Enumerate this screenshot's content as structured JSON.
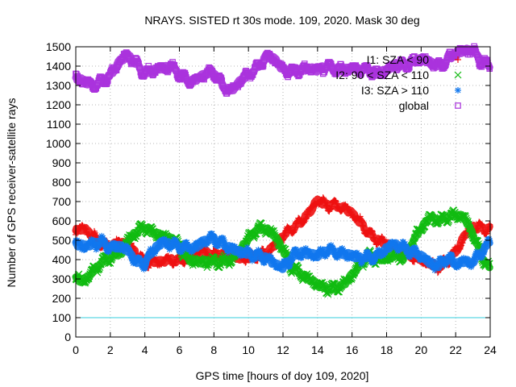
{
  "chart_data": {
    "type": "scatter",
    "title": "NRAYS. SISTED rt 30s mode. 109, 2020. Mask 30 deg",
    "xlabel": "GPS time [hours of doy 109, 2020]",
    "ylabel": "Number of GPS receiver-satellite rays",
    "xlim": [
      0,
      24
    ],
    "ylim": [
      0,
      1500
    ],
    "x_ticks": [
      "0",
      "2",
      "4",
      "6",
      "8",
      "10",
      "12",
      "14",
      "16",
      "18",
      "20",
      "22",
      "24"
    ],
    "y_ticks": [
      "0",
      "100",
      "200",
      "300",
      "400",
      "500",
      "600",
      "700",
      "800",
      "900",
      "1000",
      "1100",
      "1200",
      "1300",
      "1400",
      "1500"
    ],
    "grid": true,
    "legend_position": "top-right",
    "reference_line": {
      "y": 100,
      "color": "#33ccdd"
    },
    "series": [
      {
        "name": "I1: SZA < 90",
        "color": "#ee1111",
        "marker": "+",
        "x": [
          0,
          0.5,
          1,
          1.5,
          2,
          2.5,
          3,
          3.5,
          4,
          4.5,
          5,
          5.5,
          6,
          6.5,
          7,
          7.5,
          8,
          8.5,
          9,
          9.5,
          10,
          10.5,
          11,
          11.5,
          12,
          12.5,
          13,
          13.5,
          14,
          14.5,
          15,
          15.5,
          16,
          16.5,
          17,
          17.5,
          18,
          18.5,
          19,
          19.5,
          20,
          20.5,
          21,
          21.5,
          22,
          22.5,
          23,
          23.5,
          24
        ],
        "values": [
          550,
          560,
          520,
          480,
          470,
          490,
          480,
          430,
          380,
          390,
          390,
          400,
          390,
          420,
          440,
          440,
          420,
          430,
          420,
          410,
          410,
          420,
          430,
          470,
          520,
          560,
          590,
          640,
          710,
          680,
          680,
          670,
          640,
          590,
          530,
          500,
          480,
          460,
          430,
          420,
          400,
          380,
          360,
          390,
          440,
          520,
          570,
          560,
          560
        ]
      },
      {
        "name": "I2: 90 < SZA < 110",
        "color": "#11bb11",
        "marker": "x",
        "x": [
          0,
          0.5,
          1,
          1.5,
          2,
          2.5,
          3,
          3.5,
          4,
          4.5,
          5,
          5.5,
          6,
          6.5,
          7,
          7.5,
          8,
          8.5,
          9,
          9.5,
          10,
          10.5,
          11,
          11.5,
          12,
          12.5,
          13,
          13.5,
          14,
          14.5,
          15,
          15.5,
          16,
          16.5,
          17,
          17.5,
          18,
          18.5,
          19,
          19.5,
          20,
          20.5,
          21,
          21.5,
          22,
          22.5,
          23,
          23.5,
          24
        ],
        "values": [
          300,
          290,
          340,
          390,
          410,
          430,
          500,
          540,
          570,
          540,
          520,
          510,
          470,
          400,
          390,
          390,
          390,
          390,
          400,
          450,
          510,
          560,
          560,
          530,
          450,
          360,
          330,
          300,
          270,
          250,
          250,
          270,
          320,
          380,
          420,
          400,
          410,
          420,
          410,
          490,
          560,
          620,
          600,
          620,
          630,
          620,
          530,
          420,
          350
        ]
      },
      {
        "name": "I3: SZA > 110",
        "color": "#1177ee",
        "marker": "*",
        "x": [
          0,
          0.5,
          1,
          1.5,
          2,
          2.5,
          3,
          3.5,
          4,
          4.5,
          5,
          5.5,
          6,
          6.5,
          7,
          7.5,
          8,
          8.5,
          9,
          9.5,
          10,
          10.5,
          11,
          11.5,
          12,
          12.5,
          13,
          13.5,
          14,
          14.5,
          15,
          15.5,
          16,
          16.5,
          17,
          17.5,
          18,
          18.5,
          19,
          19.5,
          20,
          20.5,
          21,
          21.5,
          22,
          22.5,
          23,
          23.5,
          24
        ],
        "values": [
          480,
          470,
          480,
          490,
          460,
          470,
          450,
          390,
          380,
          450,
          490,
          480,
          470,
          460,
          470,
          500,
          510,
          480,
          460,
          440,
          430,
          420,
          410,
          380,
          360,
          410,
          440,
          430,
          420,
          450,
          440,
          430,
          420,
          410,
          410,
          420,
          460,
          480,
          460,
          440,
          420,
          380,
          370,
          410,
          380,
          390,
          390,
          440,
          490
        ]
      },
      {
        "name": "global",
        "color": "#aa33dd",
        "marker": "square",
        "x": [
          0,
          0.5,
          1,
          1.5,
          2,
          2.5,
          3,
          3.5,
          4,
          4.5,
          5,
          5.5,
          6,
          6.5,
          7,
          7.5,
          8,
          8.5,
          9,
          9.5,
          10,
          10.5,
          11,
          11.5,
          12,
          12.5,
          13,
          13.5,
          14,
          14.5,
          15,
          15.5,
          16,
          16.5,
          17,
          17.5,
          18,
          18.5,
          19,
          19.5,
          20,
          20.5,
          21,
          21.5,
          22,
          22.5,
          23,
          23.5,
          24
        ],
        "values": [
          1340,
          1320,
          1300,
          1320,
          1350,
          1420,
          1460,
          1410,
          1360,
          1380,
          1390,
          1400,
          1360,
          1320,
          1330,
          1360,
          1370,
          1300,
          1270,
          1320,
          1360,
          1390,
          1450,
          1440,
          1380,
          1370,
          1380,
          1390,
          1380,
          1400,
          1390,
          1380,
          1390,
          1380,
          1380,
          1360,
          1380,
          1410,
          1400,
          1420,
          1440,
          1420,
          1400,
          1430,
          1470,
          1480,
          1480,
          1420,
          1400
        ]
      }
    ]
  }
}
